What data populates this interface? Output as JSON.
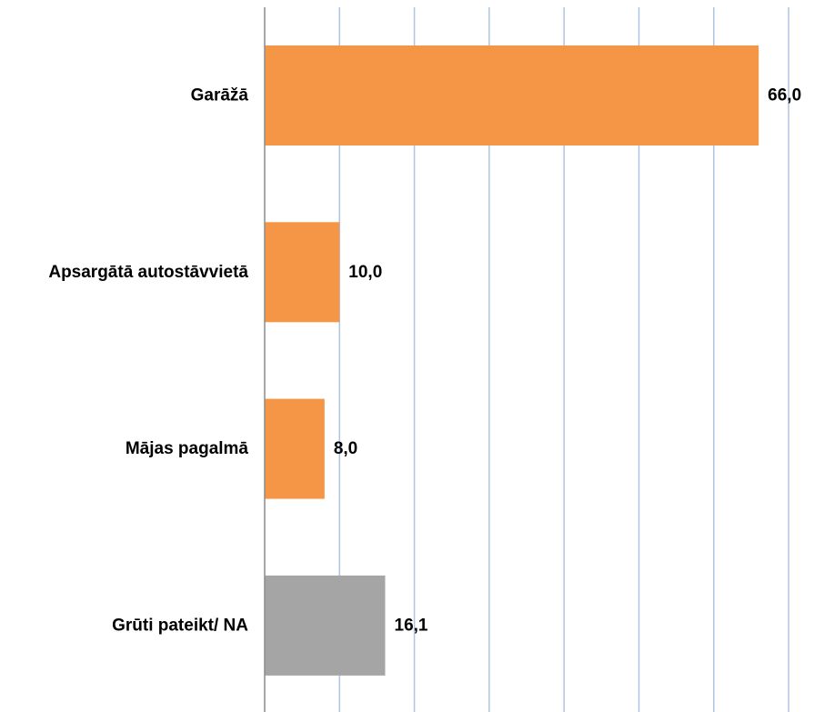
{
  "chart_data": {
    "type": "bar",
    "orientation": "horizontal",
    "categories": [
      "Garāžā",
      "Apsargātā autostāvvietā",
      "Mājas pagalmā",
      "Grūti pateikt/ NA"
    ],
    "values": [
      66.0,
      10.0,
      8.0,
      16.1
    ],
    "value_labels": [
      "66,0",
      "10,0",
      "8,0",
      "16,1"
    ],
    "bar_colors": [
      "#F59646",
      "#F59646",
      "#F59646",
      "#A5A5A5"
    ],
    "title": "",
    "xlabel": "",
    "ylabel": "",
    "xlim": [
      0,
      70
    ],
    "x_gridlines": [
      10,
      20,
      30,
      40,
      50,
      60,
      70
    ],
    "gridline_color": "#AFC3E3",
    "axis_color": "#8C8C8C",
    "grid": true,
    "legend": "none"
  }
}
